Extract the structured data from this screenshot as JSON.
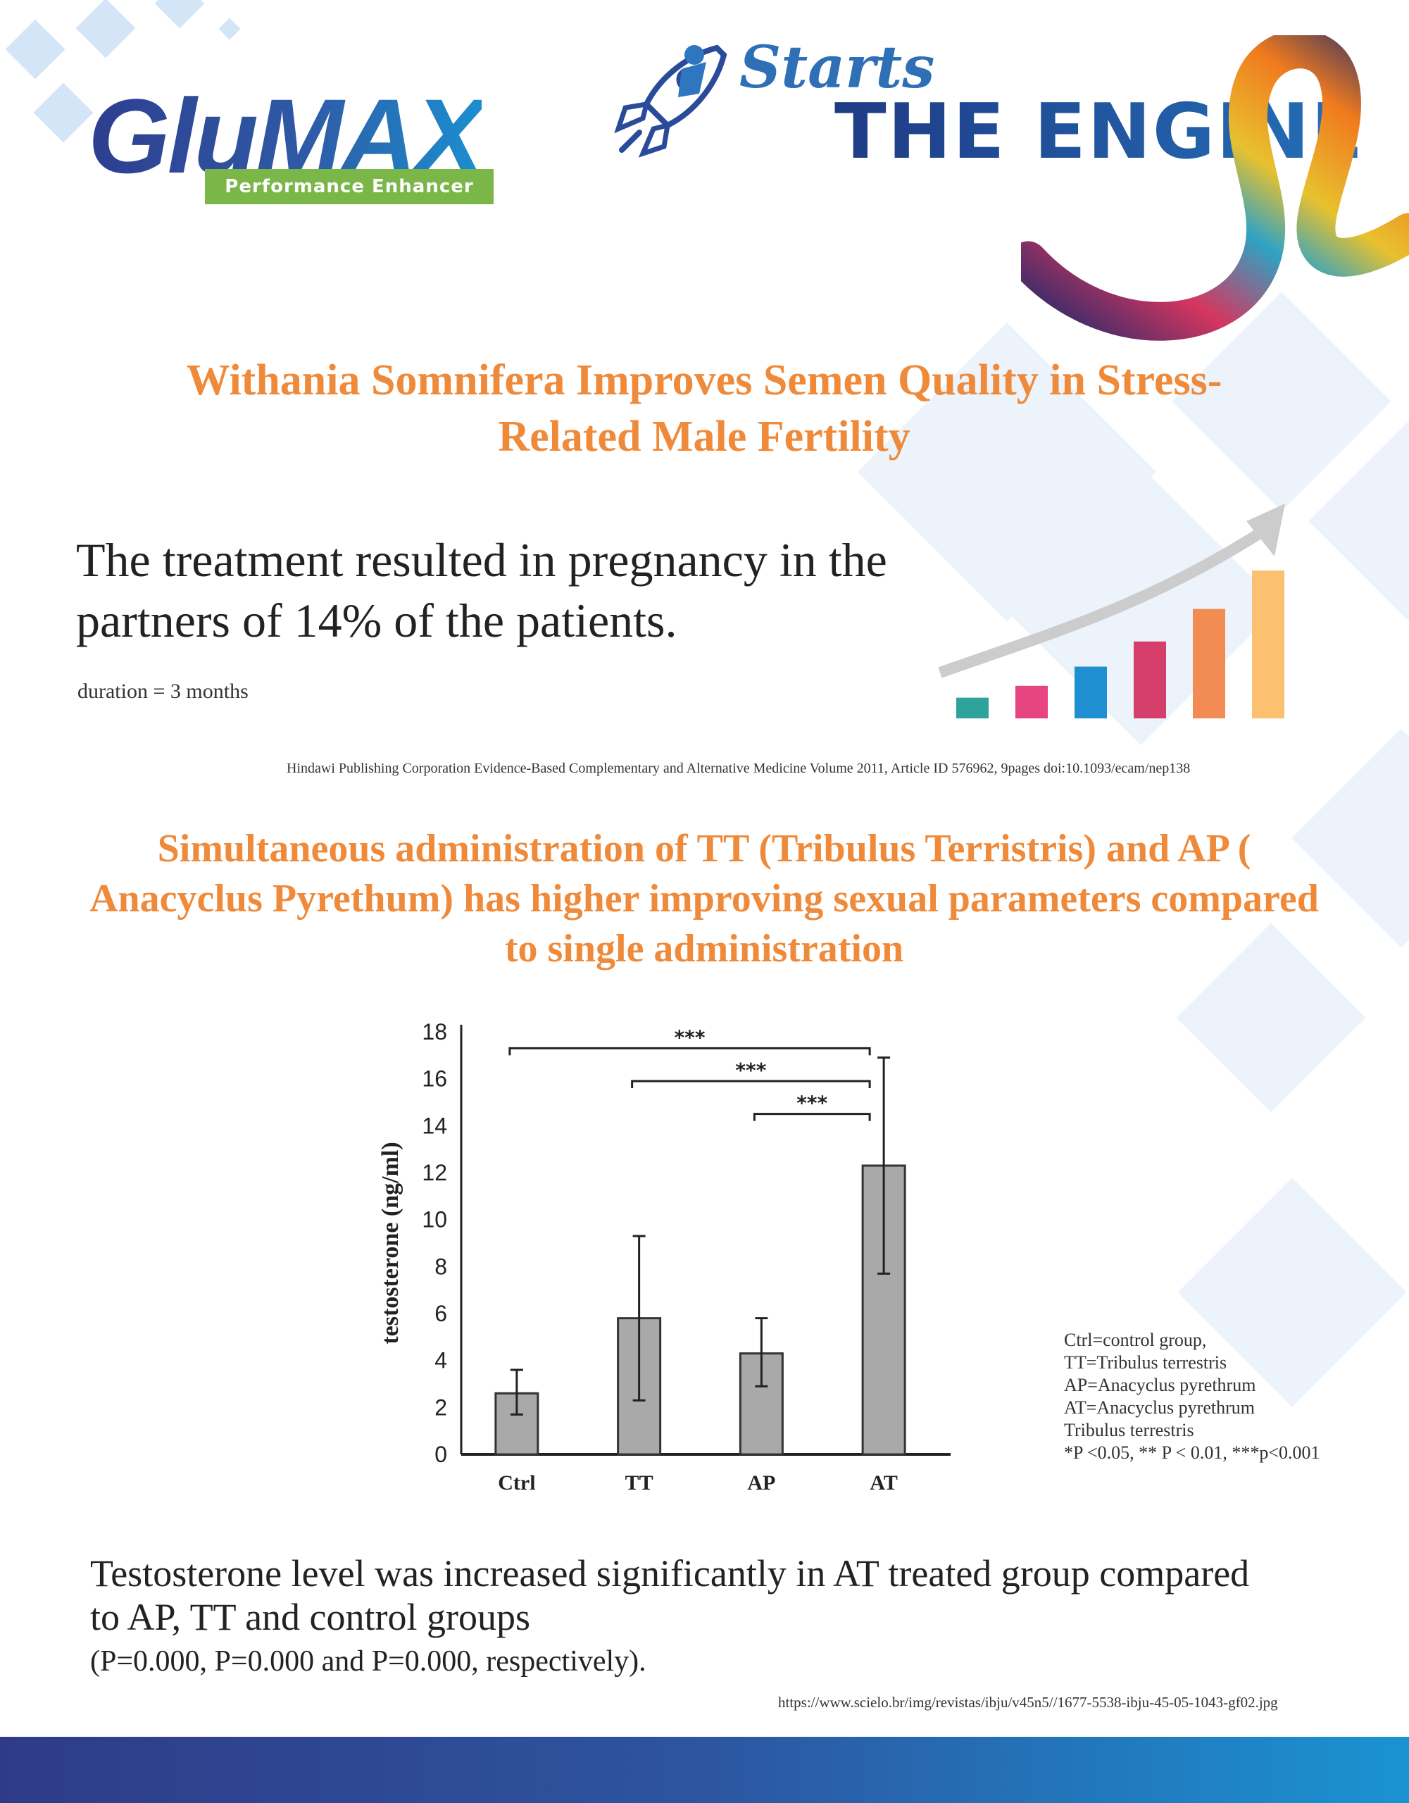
{
  "header": {
    "logo_text": "GluMAX",
    "logo_tagline": "Performance Enhancer",
    "slogan_line1": "Starts",
    "slogan_line2": "THE ENGINE"
  },
  "section1": {
    "title": "Withania  Somnifera  Improves  Semen Quality in Stress-Related Male Fertility",
    "statement": "The treatment resulted in pregnancy in the partners of 14% of the patients.",
    "duration": "duration = 3 months",
    "citation": "Hindawi Publishing Corporation Evidence-Based Complementary and Alternative Medicine Volume 2011, Article ID 576962, 9pages doi:10.1093/ecam/nep138"
  },
  "section2": {
    "title": "Simultaneous administration of TT (Tribulus Terristris) and AP ( Anacyclus Pyrethum)  has higher improving sexual parameters compared to single administration",
    "legend": [
      "Ctrl=control group,",
      "TT=Tribulus terrestris",
      "AP=Anacyclus pyrethrum",
      "AT=Anacyclus pyrethrum",
      "Tribulus terrestris",
      "*P <0.05, ** P < 0.01, ***p<0.001"
    ],
    "conclusion": "Testosterone level was increased significantly in AT treated group compared to AP, TT and control groups",
    "p_values": "(P=0.000, P=0.000 and P=0.000, respectively).",
    "citation": "https://www.scielo.br/img/revistas/ibju/v45n5//1677-5538-ibju-45-05-1043-gf02.jpg"
  },
  "colors": {
    "accent_orange": "#ef8a3a",
    "brand_blue": "#2d3e8f",
    "brand_green": "#7ab648",
    "bar_gray": "#a9a9a9"
  },
  "chart_data": {
    "type": "bar",
    "categories": [
      "Ctrl",
      "TT",
      "AP",
      "AT"
    ],
    "values": [
      2.6,
      5.8,
      4.3,
      12.3
    ],
    "error_low": [
      1.7,
      2.3,
      2.9,
      7.7
    ],
    "error_high": [
      3.6,
      9.3,
      5.8,
      16.9
    ],
    "ylabel": "testosterone (ng/ml)",
    "xlabel": "",
    "ylim": [
      0,
      18
    ],
    "yticks": [
      "0",
      "2",
      "4",
      "6",
      "8",
      "10",
      "12",
      "14",
      "16",
      "18"
    ],
    "significance": [
      {
        "from": "Ctrl",
        "to": "AT",
        "label": "***"
      },
      {
        "from": "TT",
        "to": "AT",
        "label": "***"
      },
      {
        "from": "AP",
        "to": "AT",
        "label": "***"
      }
    ],
    "grid": false
  },
  "growth_graphic": {
    "bar_levels": [
      0.14,
      0.22,
      0.35,
      0.52,
      0.74,
      1.0
    ],
    "bar_colors": [
      "#2ea39c",
      "#e8447f",
      "#1f8fd1",
      "#d63f6b",
      "#f28c52",
      "#fbc170"
    ]
  }
}
